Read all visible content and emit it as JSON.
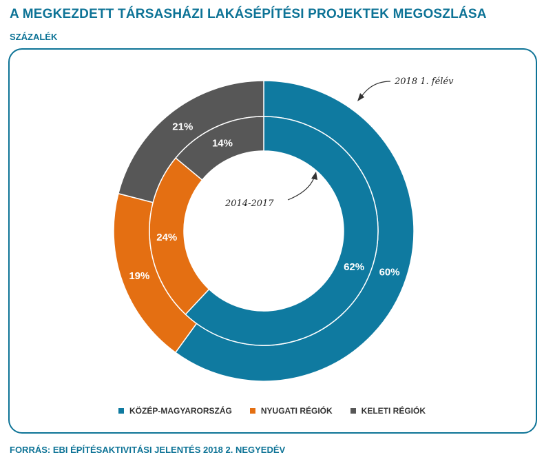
{
  "title": "A MEGKEZDETT TÁRSASHÁZI LAKÁSÉPÍTÉSI PROJEKTEK MEGOSZLÁSA",
  "subtitle": "SZÁZALÉK",
  "source": "FORRÁS: EBI ÉPÍTÉSAKTIVITÁSI JELENTÉS 2018 2. NEGYEDÉV",
  "annotations": {
    "outer": "2018 1. félév",
    "inner": "2014-2017"
  },
  "chart_data": {
    "type": "pie",
    "subtype": "nested-donut",
    "categories": [
      "KÖZÉP-MAGYARORSZÁG",
      "NYUGATI RÉGIÓK",
      "KELETI RÉGIÓK"
    ],
    "colors": [
      "#0f7aa0",
      "#e46f12",
      "#575757"
    ],
    "series": [
      {
        "name": "2018 1. félév",
        "ring": "outer",
        "values": [
          60,
          19,
          21
        ],
        "labels": [
          "60%",
          "19%",
          "21%"
        ]
      },
      {
        "name": "2014-2017",
        "ring": "inner",
        "values": [
          62,
          24,
          14
        ],
        "labels": [
          "62%",
          "24%",
          "14%"
        ]
      }
    ],
    "legend_position": "bottom"
  }
}
